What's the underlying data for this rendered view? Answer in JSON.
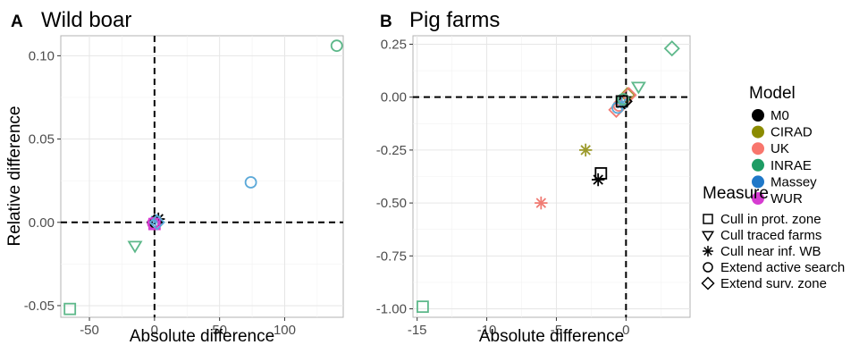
{
  "chart_data": [
    {
      "type": "scatter",
      "letter": "A",
      "title": "Wild boar",
      "xlabel": "Absolute difference",
      "ylabel": "Relative difference",
      "xlim": [
        -72,
        145
      ],
      "ylim": [
        -0.057,
        0.112
      ],
      "xticks": [
        -50,
        0,
        50,
        100
      ],
      "xtick_labels": [
        "-50",
        "0",
        "50",
        "100"
      ],
      "yticks": [
        -0.05,
        0.0,
        0.05,
        0.1
      ],
      "ytick_labels": [
        "-0.05",
        "0.00",
        "0.05",
        "0.10"
      ],
      "grid": true,
      "reference_lines": {
        "x": 0,
        "y": 0
      },
      "points": [
        {
          "model": "INRAE",
          "measure": "Extend active search",
          "x": 140,
          "y": 0.106
        },
        {
          "model": "Massey",
          "measure": "Extend active search",
          "x": 74,
          "y": 0.024
        },
        {
          "model": "INRAE",
          "measure": "Cull in prot. zone",
          "x": -65,
          "y": -0.052
        },
        {
          "model": "INRAE",
          "measure": "Cull traced farms",
          "x": -15,
          "y": -0.014
        },
        {
          "model": "M0",
          "measure": "Cull near inf. WB",
          "x": 3,
          "y": 0.002
        },
        {
          "model": "Massey",
          "measure": "Cull near inf. WB",
          "x": 1,
          "y": 0.001
        },
        {
          "model": "M0",
          "measure": "Extend surv. zone",
          "x": 0,
          "y": 0.0
        },
        {
          "model": "WUR",
          "measure": "Extend active search",
          "x": -1,
          "y": -0.0005
        },
        {
          "model": "WUR",
          "measure": "Cull in prot. zone",
          "x": 0,
          "y": -0.001
        },
        {
          "model": "Massey",
          "measure": "Extend surv. zone",
          "x": 2,
          "y": 0.0
        }
      ]
    },
    {
      "type": "scatter",
      "letter": "B",
      "title": "Pig farms",
      "xlabel": "Absolute difference",
      "ylabel": "",
      "xlim": [
        -15.3,
        4.6
      ],
      "ylim": [
        -1.04,
        0.29
      ],
      "xticks": [
        -15,
        -10,
        -5,
        0
      ],
      "xtick_labels": [
        "-15",
        "-10",
        "-5",
        "0"
      ],
      "yticks": [
        -1.0,
        -0.75,
        -0.5,
        -0.25,
        0.0,
        0.25
      ],
      "ytick_labels": [
        "-1.00",
        "-0.75",
        "-0.50",
        "-0.25",
        "0.00",
        "0.25"
      ],
      "grid": true,
      "reference_lines": {
        "x": 0,
        "y": 0
      },
      "points": [
        {
          "model": "INRAE",
          "measure": "Extend surv. zone",
          "x": 3.3,
          "y": 0.23
        },
        {
          "model": "INRAE",
          "measure": "Cull traced farms",
          "x": 0.9,
          "y": 0.05
        },
        {
          "model": "CIRAD",
          "measure": "Cull near inf. WB",
          "x": -2.9,
          "y": -0.25
        },
        {
          "model": "M0",
          "measure": "Cull in prot. zone",
          "x": -1.8,
          "y": -0.36
        },
        {
          "model": "M0",
          "measure": "Cull near inf. WB",
          "x": -2.0,
          "y": -0.39
        },
        {
          "model": "UK",
          "measure": "Cull near inf. WB",
          "x": -6.1,
          "y": -0.5
        },
        {
          "model": "INRAE",
          "measure": "Cull in prot. zone",
          "x": -14.6,
          "y": -0.99
        },
        {
          "model": "UK",
          "measure": "Extend surv. zone",
          "x": -0.7,
          "y": -0.06
        },
        {
          "model": "UK",
          "measure": "Extend active search",
          "x": -0.5,
          "y": -0.04
        },
        {
          "model": "Massey",
          "measure": "Extend active search",
          "x": -0.6,
          "y": -0.05
        },
        {
          "model": "CIRAD",
          "measure": "Extend surv. zone",
          "x": 0.1,
          "y": 0.01
        },
        {
          "model": "UK",
          "measure": "Extend surv. zone",
          "x": 0.2,
          "y": 0.01
        },
        {
          "model": "M0",
          "measure": "Extend surv. zone",
          "x": -0.1,
          "y": -0.02
        },
        {
          "model": "Massey",
          "measure": "Cull near inf. WB",
          "x": -0.3,
          "y": -0.03
        },
        {
          "model": "INRAE",
          "measure": "Extend active search",
          "x": -0.2,
          "y": -0.01
        },
        {
          "model": "M0",
          "measure": "Cull in prot. zone",
          "x": -0.3,
          "y": -0.02
        }
      ]
    }
  ],
  "legend": {
    "model_title": "Model",
    "models": [
      {
        "name": "M0",
        "color": "#000000"
      },
      {
        "name": "CIRAD",
        "color": "#8b8b00"
      },
      {
        "name": "UK",
        "color": "#f8766d"
      },
      {
        "name": "INRAE",
        "color": "#1e9c64"
      },
      {
        "name": "Massey",
        "color": "#1f78c8"
      },
      {
        "name": "WUR",
        "color": "#d63cd1"
      }
    ],
    "measure_title": "Measure",
    "measures": [
      {
        "name": "Cull in prot. zone",
        "shape": "square"
      },
      {
        "name": "Cull traced farms",
        "shape": "triangle-down"
      },
      {
        "name": "Cull near inf. WB",
        "shape": "asterisk"
      },
      {
        "name": "Extend active search",
        "shape": "circle"
      },
      {
        "name": "Extend surv. zone",
        "shape": "diamond"
      }
    ]
  },
  "colors": {
    "INRAE_point": "#5db88a",
    "Massey_point": "#5aa8d8",
    "UK_point": "#f07c74",
    "CIRAD_point": "#9c9a2c"
  }
}
